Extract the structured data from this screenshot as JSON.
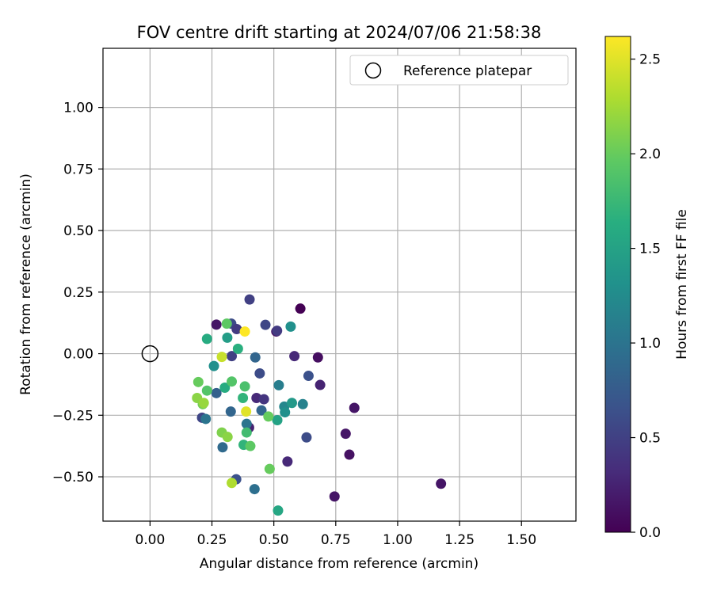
{
  "chart_data": {
    "type": "scatter",
    "title": "FOV centre drift starting at 2024/07/06 21:58:38",
    "xlabel": "Angular distance from reference (arcmin)",
    "ylabel": "Rotation from reference (arcmin)",
    "xlim": [
      -0.19,
      1.72
    ],
    "ylim": [
      -0.68,
      1.24
    ],
    "xticks": [
      0.0,
      0.25,
      0.5,
      0.75,
      1.0,
      1.25,
      1.5
    ],
    "xtick_labels": [
      "0.00",
      "0.25",
      "0.50",
      "0.75",
      "1.00",
      "1.25",
      "1.50"
    ],
    "yticks": [
      -0.5,
      -0.25,
      0.0,
      0.25,
      0.5,
      0.75,
      1.0
    ],
    "ytick_labels": [
      "−0.50",
      "−0.25",
      "0.00",
      "0.25",
      "0.50",
      "0.75",
      "1.00"
    ],
    "grid": true,
    "legend": {
      "placement": "top-right",
      "entries": [
        {
          "label": "Reference platepar",
          "marker": "hollow-circle",
          "color": "#000000"
        }
      ]
    },
    "reference_point": {
      "x": 0.0,
      "y": 0.0
    },
    "colorbar": {
      "label": "Hours from first FF file",
      "range": [
        0.0,
        2.62
      ],
      "ticks": [
        0.0,
        0.5,
        1.0,
        1.5,
        2.0,
        2.5
      ],
      "tick_labels": [
        "0.0",
        "0.5",
        "1.0",
        "1.5",
        "2.0",
        "2.5"
      ],
      "colormap": "viridis"
    },
    "points": [
      {
        "x": 0.607,
        "y": 0.183,
        "c": 0.0
      },
      {
        "x": 0.51,
        "y": 0.09,
        "c": 0.1
      },
      {
        "x": 0.268,
        "y": 0.118,
        "c": 0.15
      },
      {
        "x": 0.678,
        "y": -0.015,
        "c": 0.1
      },
      {
        "x": 0.825,
        "y": -0.22,
        "c": 0.15
      },
      {
        "x": 0.79,
        "y": -0.325,
        "c": 0.15
      },
      {
        "x": 0.805,
        "y": -0.41,
        "c": 0.12
      },
      {
        "x": 1.175,
        "y": -0.528,
        "c": 0.15
      },
      {
        "x": 0.745,
        "y": -0.58,
        "c": 0.15
      },
      {
        "x": 0.687,
        "y": -0.127,
        "c": 0.25
      },
      {
        "x": 0.583,
        "y": -0.01,
        "c": 0.3
      },
      {
        "x": 0.555,
        "y": -0.438,
        "c": 0.3
      },
      {
        "x": 0.4,
        "y": -0.3,
        "c": 0.25
      },
      {
        "x": 0.43,
        "y": -0.18,
        "c": 0.3
      },
      {
        "x": 0.46,
        "y": -0.185,
        "c": 0.4
      },
      {
        "x": 0.402,
        "y": 0.22,
        "c": 0.5
      },
      {
        "x": 0.466,
        "y": 0.117,
        "c": 0.55
      },
      {
        "x": 0.513,
        "y": 0.093,
        "c": 0.45
      },
      {
        "x": 0.328,
        "y": 0.122,
        "c": 0.6
      },
      {
        "x": 0.33,
        "y": -0.01,
        "c": 0.5
      },
      {
        "x": 0.35,
        "y": 0.1,
        "c": 0.45
      },
      {
        "x": 0.443,
        "y": -0.08,
        "c": 0.6
      },
      {
        "x": 0.64,
        "y": -0.09,
        "c": 0.65
      },
      {
        "x": 0.632,
        "y": -0.34,
        "c": 0.6
      },
      {
        "x": 0.348,
        "y": -0.51,
        "c": 0.65
      },
      {
        "x": 0.21,
        "y": -0.26,
        "c": 0.55
      },
      {
        "x": 0.268,
        "y": -0.16,
        "c": 0.8
      },
      {
        "x": 0.425,
        "y": -0.015,
        "c": 0.85
      },
      {
        "x": 0.326,
        "y": -0.235,
        "c": 0.85
      },
      {
        "x": 0.293,
        "y": -0.38,
        "c": 0.9
      },
      {
        "x": 0.422,
        "y": -0.55,
        "c": 0.95
      },
      {
        "x": 0.45,
        "y": -0.23,
        "c": 0.85
      },
      {
        "x": 0.225,
        "y": -0.265,
        "c": 1.0
      },
      {
        "x": 0.39,
        "y": -0.285,
        "c": 1.0
      },
      {
        "x": 0.52,
        "y": -0.128,
        "c": 1.1
      },
      {
        "x": 0.542,
        "y": -0.215,
        "c": 1.2
      },
      {
        "x": 0.545,
        "y": -0.238,
        "c": 1.3
      },
      {
        "x": 0.573,
        "y": -0.2,
        "c": 1.4
      },
      {
        "x": 0.568,
        "y": 0.11,
        "c": 1.3
      },
      {
        "x": 0.258,
        "y": -0.05,
        "c": 1.3
      },
      {
        "x": 0.617,
        "y": -0.205,
        "c": 1.15
      },
      {
        "x": 0.312,
        "y": 0.065,
        "c": 1.45
      },
      {
        "x": 0.514,
        "y": -0.27,
        "c": 1.5
      },
      {
        "x": 0.517,
        "y": -0.637,
        "c": 1.55
      },
      {
        "x": 0.23,
        "y": 0.06,
        "c": 1.6
      },
      {
        "x": 0.355,
        "y": 0.02,
        "c": 1.65
      },
      {
        "x": 0.302,
        "y": -0.138,
        "c": 1.6
      },
      {
        "x": 0.375,
        "y": -0.18,
        "c": 1.7
      },
      {
        "x": 0.378,
        "y": -0.37,
        "c": 1.7
      },
      {
        "x": 0.39,
        "y": -0.32,
        "c": 1.8
      },
      {
        "x": 0.33,
        "y": -0.113,
        "c": 1.9
      },
      {
        "x": 0.383,
        "y": -0.133,
        "c": 1.85
      },
      {
        "x": 0.405,
        "y": -0.375,
        "c": 1.95
      },
      {
        "x": 0.478,
        "y": -0.255,
        "c": 2.0
      },
      {
        "x": 0.483,
        "y": -0.468,
        "c": 2.0
      },
      {
        "x": 0.31,
        "y": 0.122,
        "c": 1.95
      },
      {
        "x": 0.195,
        "y": -0.115,
        "c": 2.0
      },
      {
        "x": 0.23,
        "y": -0.15,
        "c": 1.9
      },
      {
        "x": 0.213,
        "y": -0.205,
        "c": 2.05
      },
      {
        "x": 0.19,
        "y": -0.18,
        "c": 2.15
      },
      {
        "x": 0.29,
        "y": -0.32,
        "c": 2.1
      },
      {
        "x": 0.313,
        "y": -0.338,
        "c": 2.15
      },
      {
        "x": 0.33,
        "y": -0.525,
        "c": 2.3
      },
      {
        "x": 0.217,
        "y": -0.2,
        "c": 2.2
      },
      {
        "x": 0.388,
        "y": -0.235,
        "c": 2.5
      },
      {
        "x": 0.29,
        "y": -0.013,
        "c": 2.4
      },
      {
        "x": 0.383,
        "y": 0.09,
        "c": 2.62
      }
    ]
  }
}
